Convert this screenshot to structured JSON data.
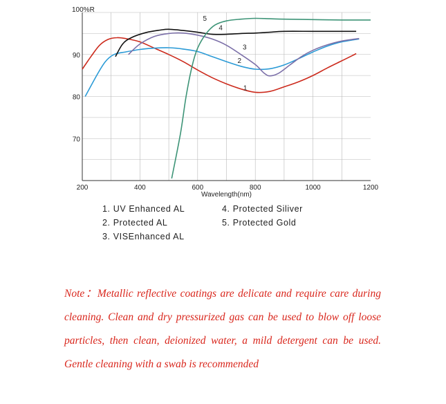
{
  "chart_data": {
    "type": "line",
    "ylabel": "100%R",
    "xlabel": "Wavelength(nm)",
    "xlim": [
      200,
      1200
    ],
    "ylim": [
      60,
      100
    ],
    "x_ticks": [
      200,
      400,
      600,
      800,
      1000,
      1200
    ],
    "x_tick_labels": [
      "200",
      "400",
      "600",
      "800",
      "1000",
      "1200"
    ],
    "y_ticks": [
      70,
      80,
      90
    ],
    "y_tick_labels": [
      "70",
      "80",
      "90"
    ],
    "grid": true,
    "series": [
      {
        "name": "1",
        "color": "#cc2a1c",
        "points": [
          [
            200,
            86.5
          ],
          [
            230,
            89.5
          ],
          [
            260,
            92.2
          ],
          [
            290,
            93.6
          ],
          [
            320,
            94.0
          ],
          [
            350,
            93.8
          ],
          [
            400,
            93.0
          ],
          [
            450,
            91.5
          ],
          [
            500,
            90.0
          ],
          [
            550,
            88.3
          ],
          [
            600,
            86.3
          ],
          [
            650,
            84.5
          ],
          [
            700,
            83.0
          ],
          [
            750,
            81.8
          ],
          [
            800,
            81.0
          ],
          [
            850,
            81.2
          ],
          [
            900,
            82.3
          ],
          [
            950,
            83.5
          ],
          [
            1000,
            85.0
          ],
          [
            1050,
            86.8
          ],
          [
            1100,
            88.5
          ],
          [
            1150,
            90.2
          ]
        ]
      },
      {
        "name": "2",
        "color": "#2a9ad6",
        "points": [
          [
            210,
            80.0
          ],
          [
            250,
            85.0
          ],
          [
            280,
            88.3
          ],
          [
            310,
            90.0
          ],
          [
            350,
            90.6
          ],
          [
            400,
            91.2
          ],
          [
            450,
            91.5
          ],
          [
            500,
            91.6
          ],
          [
            550,
            91.3
          ],
          [
            600,
            90.7
          ],
          [
            650,
            89.5
          ],
          [
            700,
            88.3
          ],
          [
            750,
            87.2
          ],
          [
            800,
            86.5
          ],
          [
            850,
            86.6
          ],
          [
            900,
            87.5
          ],
          [
            950,
            89.0
          ],
          [
            1000,
            90.6
          ],
          [
            1050,
            92.0
          ],
          [
            1100,
            93.0
          ],
          [
            1160,
            93.7
          ]
        ]
      },
      {
        "name": "3",
        "color": "#7b6fa8",
        "points": [
          [
            360,
            90.0
          ],
          [
            400,
            92.5
          ],
          [
            450,
            94.3
          ],
          [
            500,
            95.0
          ],
          [
            550,
            95.1
          ],
          [
            600,
            94.6
          ],
          [
            650,
            93.7
          ],
          [
            700,
            92.2
          ],
          [
            750,
            90.0
          ],
          [
            800,
            87.6
          ],
          [
            830,
            85.6
          ],
          [
            850,
            84.9
          ],
          [
            880,
            85.5
          ],
          [
            920,
            87.5
          ],
          [
            960,
            89.5
          ],
          [
            1000,
            91.0
          ],
          [
            1050,
            92.3
          ],
          [
            1100,
            93.2
          ],
          [
            1160,
            93.8
          ]
        ]
      },
      {
        "name": "4",
        "color": "#111111",
        "points": [
          [
            315,
            89.5
          ],
          [
            340,
            92.5
          ],
          [
            370,
            94.0
          ],
          [
            420,
            95.2
          ],
          [
            470,
            95.8
          ],
          [
            500,
            96.0
          ],
          [
            550,
            95.7
          ],
          [
            600,
            95.3
          ],
          [
            650,
            94.8
          ],
          [
            700,
            94.8
          ],
          [
            750,
            95.0
          ],
          [
            800,
            95.1
          ],
          [
            850,
            95.3
          ],
          [
            900,
            95.5
          ],
          [
            1000,
            95.5
          ],
          [
            1100,
            95.5
          ],
          [
            1150,
            95.5
          ]
        ]
      },
      {
        "name": "5",
        "color": "#3d9477",
        "points": [
          [
            510,
            60.5
          ],
          [
            540,
            71.0
          ],
          [
            560,
            80.0
          ],
          [
            580,
            87.0
          ],
          [
            600,
            91.5
          ],
          [
            630,
            95.0
          ],
          [
            660,
            97.0
          ],
          [
            700,
            98.0
          ],
          [
            750,
            98.4
          ],
          [
            800,
            98.6
          ],
          [
            850,
            98.5
          ],
          [
            900,
            98.4
          ],
          [
            1000,
            98.3
          ],
          [
            1100,
            98.2
          ],
          [
            1200,
            98.2
          ]
        ]
      }
    ],
    "curve_labels": [
      {
        "text": "1",
        "x": 765,
        "y": 81.5
      },
      {
        "text": "2",
        "x": 745,
        "y": 88.0
      },
      {
        "text": "3",
        "x": 763,
        "y": 91.2
      },
      {
        "text": "4",
        "x": 680,
        "y": 95.8
      },
      {
        "text": "5",
        "x": 625,
        "y": 98.0
      }
    ],
    "legend": {
      "placement": "bottom",
      "left": [
        "1. UV Enhanced AL",
        "2. Protected  AL",
        "3. VISEnhanced AL"
      ],
      "right": [
        "4. Protected  Siliver",
        "5. Protected  Gold"
      ]
    }
  },
  "note": "Note：Metallic reflective coatings are delicate and require care during cleaning. Clean and dry pressurized gas can be used to blow off loose particles, then clean, deionized water, a mild detergent can be used. Gentle cleaning with a swab is recommended"
}
